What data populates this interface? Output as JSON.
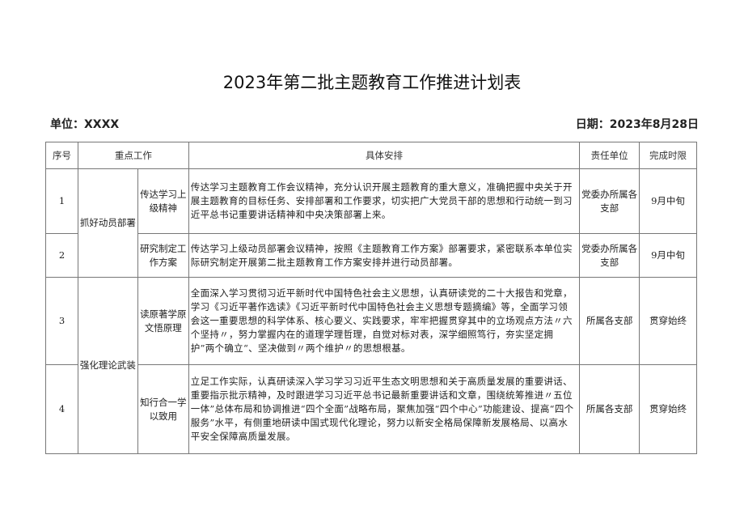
{
  "title": "2023年第二批主题教育工作推进计划表",
  "unit_label": "单位：XXXX",
  "date_label": "日期：2023年8月28日",
  "headers": {
    "no": "序号",
    "focus": "重点工作",
    "detail": "具体安排",
    "owner": "责任单位",
    "deadline": "完成时限"
  },
  "groups": [
    "抓好动员部署",
    "强化理论武装"
  ],
  "rows": [
    {
      "no": "1",
      "task": "传达学习上级精神",
      "detail": "传达学习主题教育工作会议精神，充分认识开展主题教育的重大意义，准确把握中央关于开展主题教育的目标任务、安排部署和工作要求，切实把广大党员干部的思想和行动统一到习近平总书记重要讲话精神和中央决策部署上来。",
      "owner": "党委办所属各支部",
      "deadline": "9月中旬"
    },
    {
      "no": "2",
      "task": "研究制定工作方案",
      "detail": "传达学习上级动员部署会议精神，按照《主题教育工作方案》部署要求，紧密联系本单位实际研究制定开展第二批主题教育工作方案安排并进行动员部署。",
      "owner": "党委办所属各支部",
      "deadline": "9月中旬"
    },
    {
      "no": "3",
      "task": "读原著学原文悟原理",
      "detail": "全面深入学习贯彻习近平新时代中国特色社会主义思想，认真研读党的二十大报告和党章，学习《习近平著作选读》《习近平新时代中国特色社会主义思想专题摘编》等，全面学习领会这一重要思想的科学体系、核心要义、实践要求，牢牢把握贯穿其中的立场观点方法〃六个坚持〃，努力掌握内在的道理学理哲理，自觉对标对表，深学细照笃行，夯实坚定拥护”两个确立“、坚决做到〃两个维护〃的思想根基。",
      "owner": "所属各支部",
      "deadline": "贯穿始终"
    },
    {
      "no": "4",
      "task": "知行合一学以致用",
      "detail": "立足工作实际，认真研读深入学习学习习近平生态文明思想和关于高质量发展的重要讲话、重要指示批示精神，及时跟进学习习近平总书记最新重要讲话和文章，围绕统筹推进〃五位一体”总体布局和协调推进“四个全面”战略布局，聚焦加强“四个中心”功能建设、提高“四个服务”水平，有侧重地研读中国式现代化理论，努力以新安全格局保障新发展格局、以高水平安全保障高质量发展。",
      "owner": "所属各支部",
      "deadline": "贯穿始终"
    }
  ]
}
